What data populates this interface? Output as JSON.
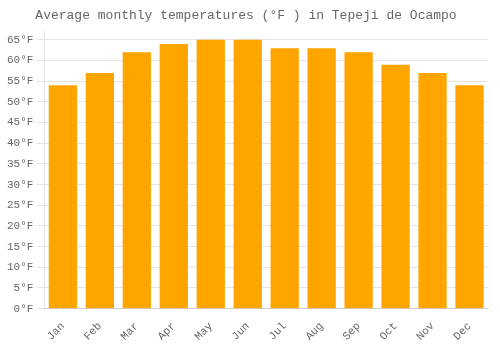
{
  "chart_data": {
    "type": "bar",
    "title": "Average monthly temperatures (°F ) in Tepeji de Ocampo",
    "categories": [
      "Jan",
      "Feb",
      "Mar",
      "Apr",
      "May",
      "Jun",
      "Jul",
      "Aug",
      "Sep",
      "Oct",
      "Nov",
      "Dec"
    ],
    "values": [
      54,
      57,
      62,
      64,
      65,
      65,
      63,
      63,
      62,
      59,
      57,
      54
    ],
    "color": "#FFA500",
    "ylim": [
      0,
      67
    ],
    "yticks": [
      {
        "value": 0,
        "label": "0°F"
      },
      {
        "value": 5,
        "label": "5°F"
      },
      {
        "value": 10,
        "label": "10°F"
      },
      {
        "value": 15,
        "label": "15°F"
      },
      {
        "value": 20,
        "label": "20°F"
      },
      {
        "value": 25,
        "label": "25°F"
      },
      {
        "value": 30,
        "label": "30°F"
      },
      {
        "value": 35,
        "label": "35°F"
      },
      {
        "value": 40,
        "label": "40°F"
      },
      {
        "value": 45,
        "label": "45°F"
      },
      {
        "value": 50,
        "label": "50°F"
      },
      {
        "value": 55,
        "label": "55°F"
      },
      {
        "value": 60,
        "label": "60°F"
      },
      {
        "value": 65,
        "label": "65°F"
      }
    ],
    "grid": true
  }
}
